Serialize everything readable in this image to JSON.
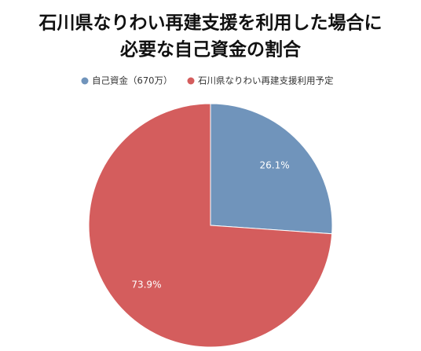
{
  "chart_data": {
    "type": "pie",
    "title": [
      "石川県なりわい再建支援を利用した場合に",
      "必要な自己資金の割合"
    ],
    "categories": [
      "自己資金（670万）",
      "石川県なりわい再建支援利用予定"
    ],
    "values": [
      26.1,
      73.9
    ],
    "value_labels": [
      "26.1%",
      "73.9%"
    ],
    "colors": [
      "#7094bb",
      "#d45d5d"
    ],
    "legend": "top"
  }
}
